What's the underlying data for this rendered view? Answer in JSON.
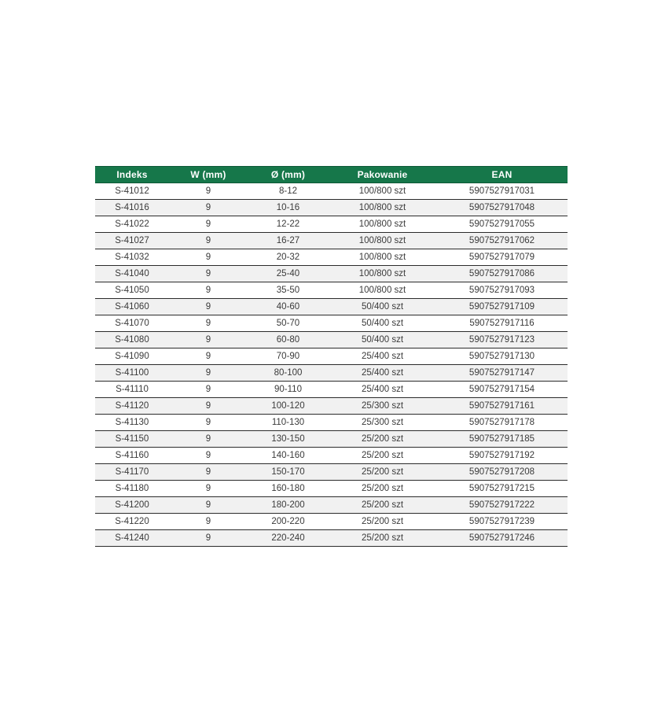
{
  "colors": {
    "header_bg": "#16774a",
    "header_border": "#0e5937",
    "header_text": "#ffffff",
    "row_bg": "#ffffff",
    "row_alt_bg": "#f1f1f1",
    "row_border": "#2b2b2b",
    "text": "#3a3a3a"
  },
  "table": {
    "columns": [
      {
        "key": "indeks",
        "label": "Indeks"
      },
      {
        "key": "w-mm",
        "label": "W (mm)"
      },
      {
        "key": "diameter-mm",
        "label": "Ø (mm)"
      },
      {
        "key": "pakowanie",
        "label": "Pakowanie"
      },
      {
        "key": "ean",
        "label": "EAN"
      }
    ],
    "rows": [
      [
        "S-41012",
        "9",
        "8-12",
        "100/800 szt",
        "5907527917031"
      ],
      [
        "S-41016",
        "9",
        "10-16",
        "100/800 szt",
        "5907527917048"
      ],
      [
        "S-41022",
        "9",
        "12-22",
        "100/800 szt",
        "5907527917055"
      ],
      [
        "S-41027",
        "9",
        "16-27",
        "100/800 szt",
        "5907527917062"
      ],
      [
        "S-41032",
        "9",
        "20-32",
        "100/800 szt",
        "5907527917079"
      ],
      [
        "S-41040",
        "9",
        "25-40",
        "100/800 szt",
        "5907527917086"
      ],
      [
        "S-41050",
        "9",
        "35-50",
        "100/800 szt",
        "5907527917093"
      ],
      [
        "S-41060",
        "9",
        "40-60",
        "50/400 szt",
        "5907527917109"
      ],
      [
        "S-41070",
        "9",
        "50-70",
        "50/400 szt",
        "5907527917116"
      ],
      [
        "S-41080",
        "9",
        "60-80",
        "50/400 szt",
        "5907527917123"
      ],
      [
        "S-41090",
        "9",
        "70-90",
        "25/400 szt",
        "5907527917130"
      ],
      [
        "S-41100",
        "9",
        "80-100",
        "25/400 szt",
        "5907527917147"
      ],
      [
        "S-41110",
        "9",
        "90-110",
        "25/400 szt",
        "5907527917154"
      ],
      [
        "S-41120",
        "9",
        "100-120",
        "25/300 szt",
        "5907527917161"
      ],
      [
        "S-41130",
        "9",
        "110-130",
        "25/300 szt",
        "5907527917178"
      ],
      [
        "S-41150",
        "9",
        "130-150",
        "25/200 szt",
        "5907527917185"
      ],
      [
        "S-41160",
        "9",
        "140-160",
        "25/200 szt",
        "5907527917192"
      ],
      [
        "S-41170",
        "9",
        "150-170",
        "25/200 szt",
        "5907527917208"
      ],
      [
        "S-41180",
        "9",
        "160-180",
        "25/200 szt",
        "5907527917215"
      ],
      [
        "S-41200",
        "9",
        "180-200",
        "25/200 szt",
        "5907527917222"
      ],
      [
        "S-41220",
        "9",
        "200-220",
        "25/200 szt",
        "5907527917239"
      ],
      [
        "S-41240",
        "9",
        "220-240",
        "25/200 szt",
        "5907527917246"
      ]
    ]
  }
}
